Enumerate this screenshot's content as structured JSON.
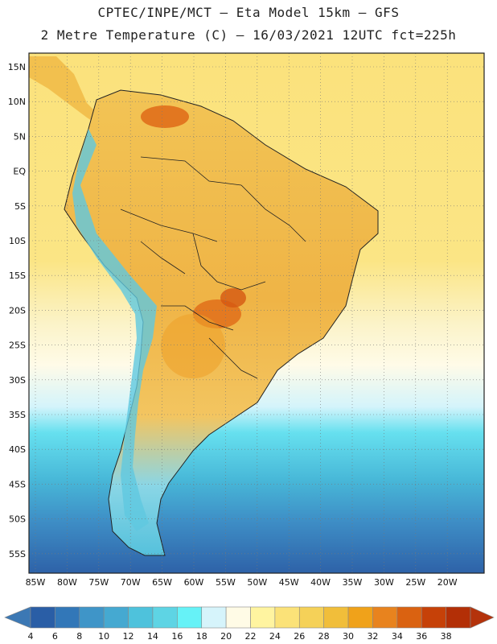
{
  "header": {
    "title_line1": "CPTEC/INPE/MCT –  Eta Model 15km – GFS",
    "title_line2": "2 Metre Temperature (C) – 16/03/2021 12UTC fct=225h"
  },
  "map": {
    "lat_labels": [
      "15N",
      "10N",
      "5N",
      "EQ",
      "5S",
      "10S",
      "15S",
      "20S",
      "25S",
      "30S",
      "35S",
      "40S",
      "45S",
      "50S",
      "55S"
    ],
    "lon_labels": [
      "85W",
      "80W",
      "75W",
      "70W",
      "65W",
      "60W",
      "55W",
      "50W",
      "45W",
      "40W",
      "35W",
      "30W",
      "25W",
      "20W"
    ]
  },
  "colorbar": {
    "levels": [
      "4",
      "6",
      "8",
      "10",
      "12",
      "14",
      "16",
      "18",
      "20",
      "22",
      "24",
      "26",
      "28",
      "30",
      "32",
      "34",
      "36",
      "38"
    ],
    "colors": [
      "#2a5ea6",
      "#3277b8",
      "#3f95c8",
      "#45a9d1",
      "#4ec2dc",
      "#5ed4e4",
      "#66f2f7",
      "#d6f4fb",
      "#fffbe6",
      "#fff4a0",
      "#fbe278",
      "#f5d158",
      "#f1be3a",
      "#f0a21a",
      "#e8831e",
      "#da6211",
      "#c64108",
      "#b32f06"
    ],
    "left_arrow_color": "#3c78b4",
    "right_arrow_color": "#b4330b"
  }
}
